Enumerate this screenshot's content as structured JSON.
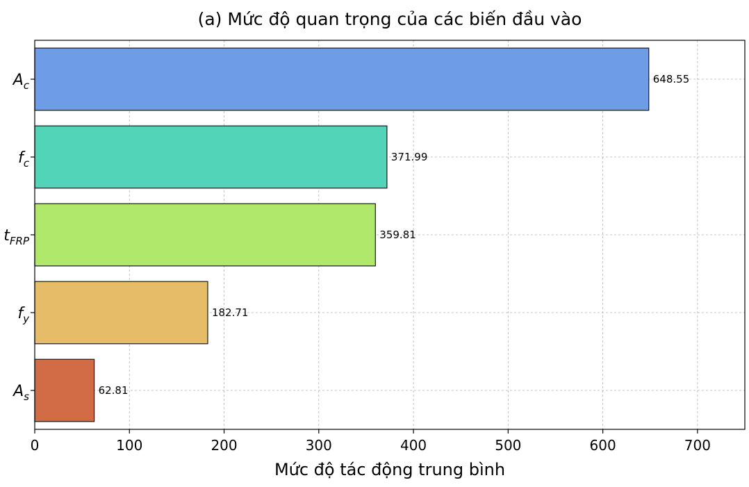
{
  "chart_data": {
    "type": "bar",
    "orientation": "horizontal",
    "title": "(a) Mức độ quan trọng của các biến đầu vào",
    "xlabel": "Mức độ tác động trung bình",
    "ylabel": "",
    "xlim": [
      0,
      750
    ],
    "xticks": [
      0,
      100,
      200,
      300,
      400,
      500,
      600,
      700
    ],
    "grid": true,
    "categories": [
      {
        "base": "A",
        "sub": "c"
      },
      {
        "base": "f",
        "sub": "c"
      },
      {
        "base": "t",
        "sub": "FRP"
      },
      {
        "base": "f",
        "sub": "y"
      },
      {
        "base": "A",
        "sub": "s"
      }
    ],
    "values": [
      648.55,
      371.99,
      359.81,
      182.71,
      62.81
    ],
    "value_labels": [
      "648.55",
      "371.99",
      "359.81",
      "182.71",
      "62.81"
    ],
    "colors": [
      "#6f9ce6",
      "#52d4b8",
      "#b0e86c",
      "#e6bc69",
      "#d26c46"
    ]
  }
}
